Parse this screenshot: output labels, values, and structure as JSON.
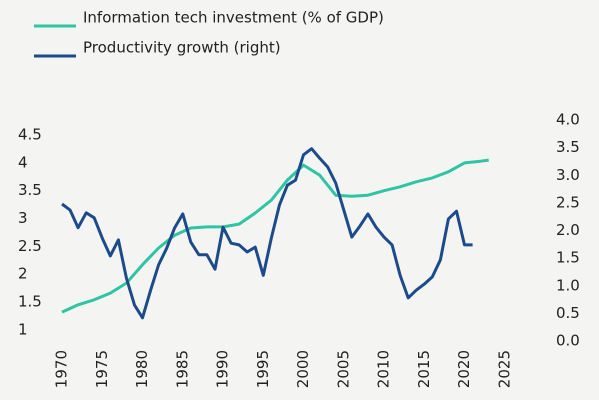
{
  "chart_data": {
    "type": "line",
    "xlim": [
      1969,
      2030
    ],
    "xticks": [
      1970,
      1975,
      1980,
      1985,
      1990,
      1995,
      2000,
      2005,
      2010,
      2015,
      2020,
      2025
    ],
    "ylim": [
      0.8,
      4.77
    ],
    "yticks": [
      1,
      1.5,
      2,
      2.5,
      3,
      3.5,
      4,
      4.5
    ],
    "y2lim": [
      0,
      4
    ],
    "y2ticks": [
      {
        "value": 0,
        "label": "0.0"
      },
      0.5,
      {
        "value": 1,
        "label": "1.0"
      },
      1.5,
      {
        "value": 2,
        "label": "2.0"
      },
      2.5,
      {
        "value": 3,
        "label": "3.0"
      },
      3.5,
      {
        "value": 4,
        "label": "4.0"
      }
    ],
    "series": [
      {
        "name": "Information tech investment (% of GDP)",
        "color": "#2fc4a4",
        "x": [
          1970,
          1972,
          1974,
          1976,
          1978,
          1980,
          1982,
          1984,
          1986,
          1988,
          1990,
          1992,
          1994,
          1996,
          1998,
          2000,
          2002,
          2004,
          2006,
          2008,
          2010,
          2012,
          2014,
          2016,
          2018,
          2020,
          2022,
          2023
        ],
        "values": [
          1.32,
          1.45,
          1.54,
          1.66,
          1.84,
          2.17,
          2.47,
          2.7,
          2.83,
          2.85,
          2.85,
          2.9,
          3.1,
          3.33,
          3.69,
          3.96,
          3.78,
          3.42,
          3.4,
          3.42,
          3.5,
          3.57,
          3.66,
          3.73,
          3.84,
          4.0,
          4.03,
          4.05
        ]
      },
      {
        "name": "Productivity growth (right)",
        "color": "#1d4b8a",
        "axis": "y2",
        "x": [
          1970,
          1971,
          1972,
          1973,
          1974,
          1975,
          1976,
          1977,
          1978,
          1979,
          1980,
          1981,
          1982,
          1983,
          1984,
          1985,
          1986,
          1987,
          1988,
          1989,
          1990,
          1991,
          1992,
          1993,
          1994,
          1995,
          1996,
          1997,
          1998,
          1999,
          2000,
          2001,
          2002,
          2003,
          2004,
          2005,
          2006,
          2007,
          2008,
          2009,
          2010,
          2011,
          2012,
          2013,
          2014,
          2015,
          2016,
          2017,
          2018,
          2019,
          2020,
          2021
        ],
        "values": [
          2.48,
          2.37,
          2.05,
          2.32,
          2.23,
          1.86,
          1.54,
          1.83,
          1.14,
          0.65,
          0.42,
          0.92,
          1.38,
          1.68,
          2.05,
          2.3,
          1.79,
          1.56,
          1.56,
          1.3,
          2.06,
          1.77,
          1.74,
          1.61,
          1.7,
          1.19,
          1.86,
          2.46,
          2.82,
          2.91,
          3.37,
          3.48,
          3.31,
          3.15,
          2.86,
          2.37,
          1.88,
          2.08,
          2.3,
          2.06,
          1.88,
          1.74,
          1.19,
          0.78,
          0.92,
          1.03,
          1.16,
          1.47,
          2.21,
          2.35,
          1.74,
          1.74
        ]
      }
    ],
    "legend": "top-left"
  }
}
